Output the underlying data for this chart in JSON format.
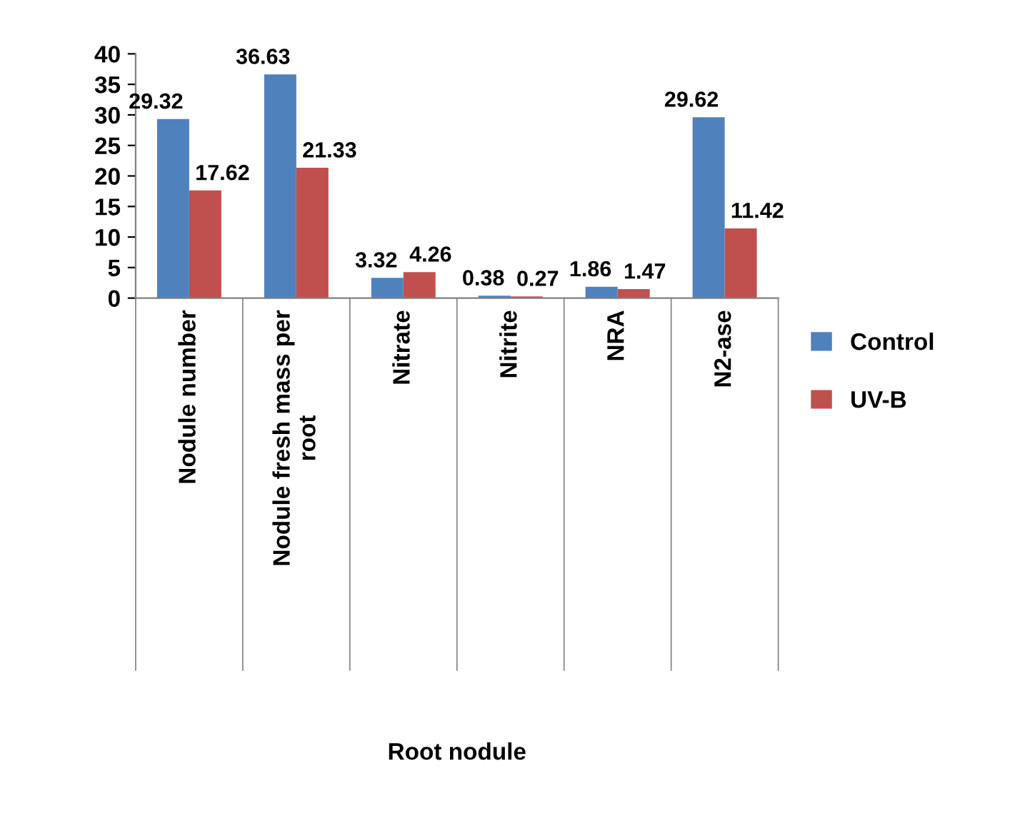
{
  "chart_data": {
    "type": "bar",
    "annotations": [
      "Root nodule"
    ],
    "categories": [
      "Nodule number",
      "Nodule fresh mass per\nroot",
      "Nitrate",
      "Nitrite",
      "NRA",
      "N2-ase"
    ],
    "series": [
      {
        "name": "Control",
        "color": "#4f81bd",
        "values": [
          29.32,
          36.63,
          3.32,
          0.38,
          1.86,
          29.62
        ]
      },
      {
        "name": "UV-B",
        "color": "#c0504d",
        "values": [
          17.62,
          21.33,
          4.26,
          0.27,
          1.47,
          11.42
        ]
      }
    ],
    "ylim": [
      0,
      40
    ],
    "yticks": [
      0,
      5,
      10,
      15,
      20,
      25,
      30,
      35,
      40
    ],
    "data_labels": true,
    "grid": false,
    "legend": "right"
  }
}
